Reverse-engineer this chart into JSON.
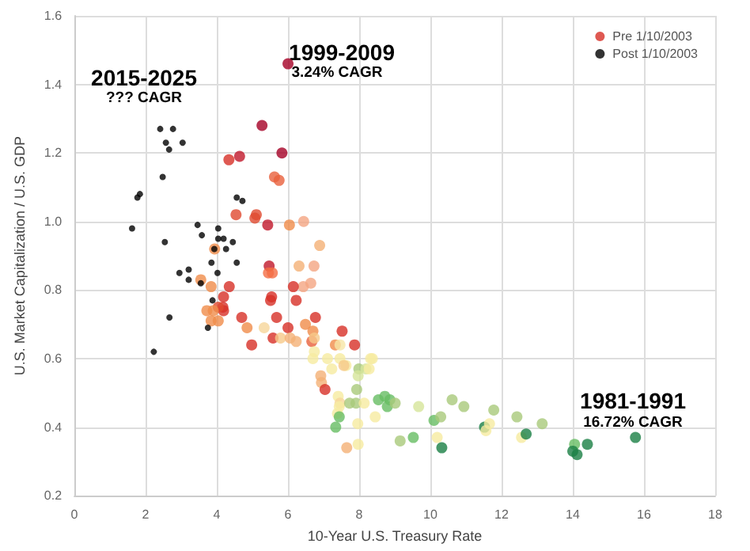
{
  "chart_data": {
    "type": "scatter",
    "xlabel": "10-Year U.S. Treasury Rate",
    "ylabel": "U.S. Market Capitalization / U.S. GDP",
    "xlim": [
      0,
      18
    ],
    "xticks": [
      0,
      2,
      4,
      6,
      8,
      10,
      12,
      14,
      16,
      18
    ],
    "ylim": [
      0.2,
      1.6
    ],
    "yticks": [
      0.2,
      0.4,
      0.6,
      0.8,
      {
        "value": 1,
        "label": "1.0"
      },
      1.2,
      1.4,
      1.6
    ],
    "grid": true,
    "legend": "top right",
    "marker": "circle",
    "series": [
      {
        "name": "Pre 1/10/2003",
        "color": "#d73027",
        "x": [
          6.0,
          5.27,
          4.64,
          4.34,
          5.83,
          5.62,
          5.75,
          4.54,
          5.11,
          5.07,
          5.43,
          6.04,
          6.44,
          6.89,
          3.94,
          5.47,
          5.45,
          5.56,
          6.31,
          6.73,
          6.64,
          6.43,
          6.15,
          3.84,
          3.55,
          4.35,
          4.19,
          5.54,
          5.51,
          6.23,
          4.17,
          4.19,
          4.04,
          3.72,
          3.84,
          3.9,
          4.04,
          4.7,
          5.68,
          6.77,
          4.85,
          4.98,
          5.33,
          5.58,
          5.79,
          6.0,
          6.06,
          6.23,
          6.49,
          6.7,
          6.67,
          6.74,
          7.52,
          7.87,
          7.33,
          7.46,
          6.74,
          6.7,
          7.11,
          7.23,
          7.46,
          7.63,
          7.57,
          8.37,
          7.99,
          8.19,
          7.97,
          6.92,
          6.94,
          7.04,
          7.41,
          7.46,
          7.44,
          7.73,
          7.91,
          8.14,
          7.93,
          7.39,
          7.44,
          7.34,
          7.96,
          7.65,
          7.97,
          8.45,
          8.54,
          8.72,
          8.79,
          8.86,
          9.01,
          8.32,
          8.28,
          9.67,
          9.15,
          9.52,
          10.1,
          10.29,
          10.19,
          10.32,
          10.61,
          10.94,
          11.52,
          11.56,
          11.66,
          11.78,
          12.43,
          12.56,
          12.69,
          13.14,
          14.05,
          14.0,
          14.12,
          14.41,
          15.76
        ],
        "values": [
          1.46,
          1.28,
          1.19,
          1.18,
          1.2,
          1.13,
          1.12,
          1.02,
          1.02,
          1.01,
          0.99,
          0.99,
          1.0,
          0.93,
          0.92,
          0.87,
          0.85,
          0.85,
          0.87,
          0.87,
          0.82,
          0.81,
          0.81,
          0.81,
          0.83,
          0.81,
          0.78,
          0.78,
          0.77,
          0.77,
          0.75,
          0.74,
          0.75,
          0.74,
          0.71,
          0.74,
          0.71,
          0.72,
          0.72,
          0.72,
          0.69,
          0.64,
          0.69,
          0.66,
          0.66,
          0.69,
          0.66,
          0.65,
          0.7,
          0.68,
          0.65,
          0.66,
          0.68,
          0.64,
          0.64,
          0.64,
          0.62,
          0.6,
          0.6,
          0.57,
          0.6,
          0.58,
          0.58,
          0.6,
          0.57,
          0.57,
          0.55,
          0.55,
          0.53,
          0.51,
          0.49,
          0.47,
          0.46,
          0.47,
          0.47,
          0.47,
          0.51,
          0.44,
          0.43,
          0.4,
          0.41,
          0.34,
          0.35,
          0.43,
          0.48,
          0.49,
          0.46,
          0.48,
          0.47,
          0.6,
          0.57,
          0.46,
          0.36,
          0.37,
          0.42,
          0.43,
          0.37,
          0.34,
          0.48,
          0.46,
          0.4,
          0.39,
          0.41,
          0.45,
          0.43,
          0.37,
          0.38,
          0.41,
          0.35,
          0.33,
          0.32,
          0.35,
          0.37
        ],
        "colors": [
          "#a50026",
          "#a50026",
          "#c0182a",
          "#d73027",
          "#a50026",
          "#e8603c",
          "#e8603c",
          "#e04a2f",
          "#e04a2f",
          "#e04a2f",
          "#c0182a",
          "#f08c4a",
          "#f4a582",
          "#f4b075",
          "#f08c4a",
          "#c0182a",
          "#f46d43",
          "#f46d43",
          "#f4b075",
          "#f4a582",
          "#f4a582",
          "#f4a582",
          "#d73027",
          "#f08c4a",
          "#f08c4a",
          "#d73027",
          "#d73027",
          "#d73027",
          "#d73027",
          "#d73027",
          "#d73027",
          "#d73027",
          "#e04a2f",
          "#f08c4a",
          "#f08c4a",
          "#f08c4a",
          "#f08c4a",
          "#d73027",
          "#d73027",
          "#d73027",
          "#f08c4a",
          "#d73027",
          "#f6d69a",
          "#d73027",
          "#f6c98a",
          "#d73027",
          "#f4b075",
          "#f4b075",
          "#f08c4a",
          "#f08c4a",
          "#e8603c",
          "#f6c98a",
          "#d73027",
          "#d73027",
          "#f08c4a",
          "#f6e6a6",
          "#f6eba0",
          "#f6eba0",
          "#f6eba0",
          "#f6eba0",
          "#f6eba0",
          "#f6eba0",
          "#f6c98a",
          "#f6eba0",
          "#a9c97a",
          "#d6e59a",
          "#d6e59a",
          "#f4b075",
          "#f4b075",
          "#d73027",
          "#f6eba0",
          "#f6d69a",
          "#f6eba0",
          "#a9c97a",
          "#a9c97a",
          "#f6eba0",
          "#a9c97a",
          "#f6eba0",
          "#66bd63",
          "#66bd63",
          "#f6eba0",
          "#f4b075",
          "#f6eba0",
          "#f6eba0",
          "#66bd63",
          "#66bd63",
          "#66bd63",
          "#66bd63",
          "#a9c97a",
          "#f6eba0",
          "#f6eba0",
          "#d6e59a",
          "#a9c97a",
          "#66bd63",
          "#66bd63",
          "#a9c97a",
          "#f6eba0",
          "#1a7f45",
          "#a9c97a",
          "#a9c97a",
          "#1a7f45",
          "#f6eba0",
          "#f6eba0",
          "#a9c97a",
          "#a9c97a",
          "#f6eba0",
          "#1a7f45",
          "#a9c97a",
          "#66bd63",
          "#1a7f45",
          "#1a7f45",
          "#1a7f45",
          "#1a7f45"
        ]
      },
      {
        "name": "Post 1/10/2003",
        "color": "#000000",
        "x": [
          2.41,
          2.77,
          2.57,
          2.66,
          3.04,
          2.48,
          1.77,
          1.84,
          1.62,
          2.54,
          3.46,
          3.58,
          4.04,
          4.04,
          4.19,
          4.45,
          4.56,
          4.72,
          3.93,
          4.26,
          3.85,
          4.56,
          2.95,
          3.21,
          4.02,
          3.21,
          3.55,
          3.88,
          2.67,
          3.75,
          2.23
        ],
        "values": [
          1.27,
          1.27,
          1.23,
          1.21,
          1.23,
          1.13,
          1.07,
          1.08,
          0.98,
          0.94,
          0.99,
          0.96,
          0.98,
          0.95,
          0.95,
          0.94,
          1.07,
          1.06,
          0.92,
          0.92,
          0.88,
          0.88,
          0.85,
          0.86,
          0.85,
          0.83,
          0.82,
          0.77,
          0.72,
          0.69,
          0.62
        ]
      }
    ],
    "annotations": [
      "2015-2025",
      "??? CAGR",
      "1999-2009",
      "3.24% CAGR",
      "1981-1991",
      "16.72% CAGR"
    ]
  }
}
